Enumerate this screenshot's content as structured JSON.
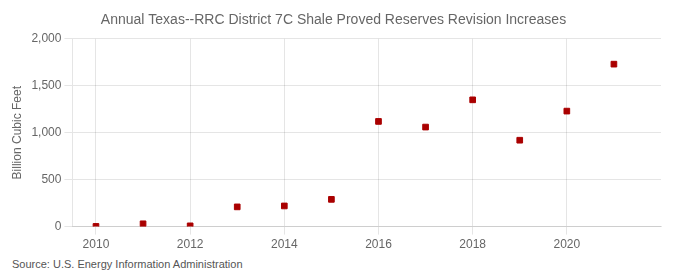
{
  "chart_data": {
    "type": "scatter",
    "title": "Annual Texas--RRC District 7C Shale Proved Reserves Revision Increases",
    "ylabel": "Billion Cubic Feet",
    "annotations": [
      "Source: U.S. Energy Information Administration"
    ],
    "x": [
      2010,
      2011,
      2012,
      2013,
      2014,
      2015,
      2016,
      2017,
      2018,
      2019,
      2020,
      2021
    ],
    "values": [
      2,
      30,
      8,
      210,
      220,
      290,
      1120,
      1060,
      1350,
      920,
      1230,
      1730
    ],
    "color": "#aa0000",
    "marker": "square",
    "xlim": [
      2009.5,
      2022.0
    ],
    "xticks": [
      2010,
      2012,
      2014,
      2016,
      2018,
      2020
    ],
    "ylim": [
      0,
      2000
    ],
    "yticks": [
      0,
      500,
      {
        "value": 1000,
        "label": "1,000"
      },
      {
        "value": 1500,
        "label": "1,500"
      },
      {
        "value": 2000,
        "label": "2,000"
      }
    ],
    "grid": true
  }
}
